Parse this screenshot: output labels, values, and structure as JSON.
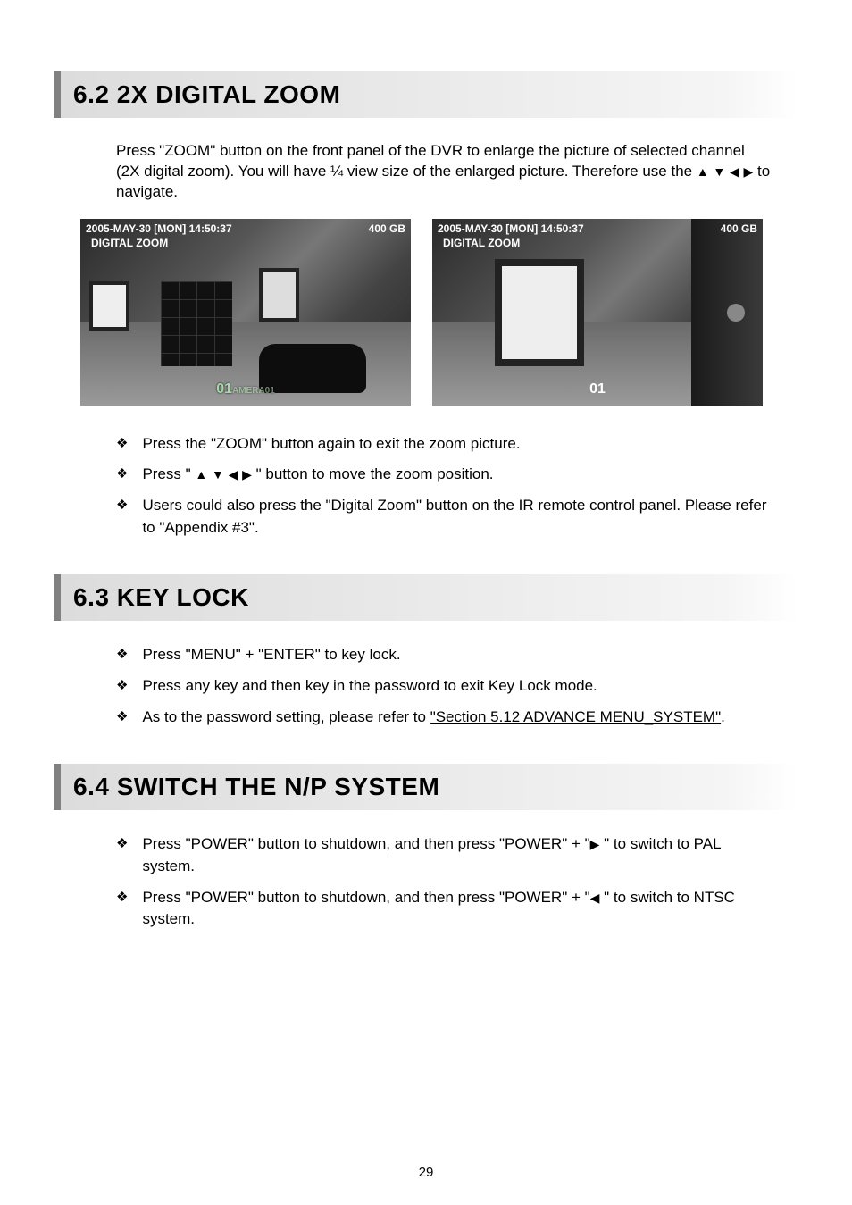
{
  "sections": {
    "zoom": {
      "heading": "6.2 2X DIGITAL ZOOM",
      "intro_pre": "Press \"ZOOM\" button on the front panel of the DVR to enlarge the picture of selected channel (2X digital zoom). You will have ¼ view size of the enlarged picture. Therefore use the ",
      "intro_post": " to navigate.",
      "bullets": [
        {
          "text": "Press the \"ZOOM\" button again to exit the zoom picture."
        },
        {
          "pre": "Press \"",
          "post": " \" button to move the zoom position.",
          "has_arrows": true
        },
        {
          "text": "Users could also press the \"Digital Zoom\" button on the IR remote control panel. Please refer to \"Appendix #3\"."
        }
      ]
    },
    "keylock": {
      "heading": "6.3 KEY LOCK",
      "bullets": [
        {
          "text": "Press \"MENU\" + \"ENTER\" to key lock."
        },
        {
          "text": "Press any key and then key in the password to exit Key Lock mode."
        },
        {
          "pre": "As to the password setting, please refer to ",
          "link": "\"Section 5.12 ADVANCE MENU_SYSTEM\"",
          "post": "."
        }
      ]
    },
    "np": {
      "heading": "6.4 SWITCH THE N/P SYSTEM",
      "bullets": [
        {
          "pre": "Press \"POWER\" button to shutdown, and then press \"POWER\" + \"",
          "glyph": "▶",
          "post": " \" to switch to PAL system."
        },
        {
          "pre": "Press \"POWER\" button to shutdown, and then press \"POWER\" + \"",
          "glyph": "◀",
          "post": " \" to switch to NTSC system."
        }
      ]
    }
  },
  "screenshots": {
    "left": {
      "timestamp": "2005-MAY-30 [MON]  14:50:37",
      "capacity": "400 GB",
      "label": "DIGITAL ZOOM",
      "channel": "01",
      "camera_tag": "AMERA01"
    },
    "right": {
      "timestamp": "2005-MAY-30 [MON]  14:50:37",
      "capacity": "400 GB",
      "label": "DIGITAL ZOOM",
      "channel": "01"
    }
  },
  "glyphs": {
    "up": "▲",
    "down": "▼",
    "left": "◀",
    "right": "▶",
    "bullet": "❖"
  },
  "page_number": "29",
  "colors": {
    "heading_bg_start": "#dcdcdc",
    "heading_border": "#808080",
    "overlay_text": "#ffffff",
    "channel_green": "#a7d8a7",
    "body_text": "#000000",
    "page_bg": "#ffffff"
  },
  "typography": {
    "body_fontsize_pt": 13,
    "heading_fontsize_pt": 21,
    "heading_weight": 900,
    "font_family": "Arial"
  }
}
